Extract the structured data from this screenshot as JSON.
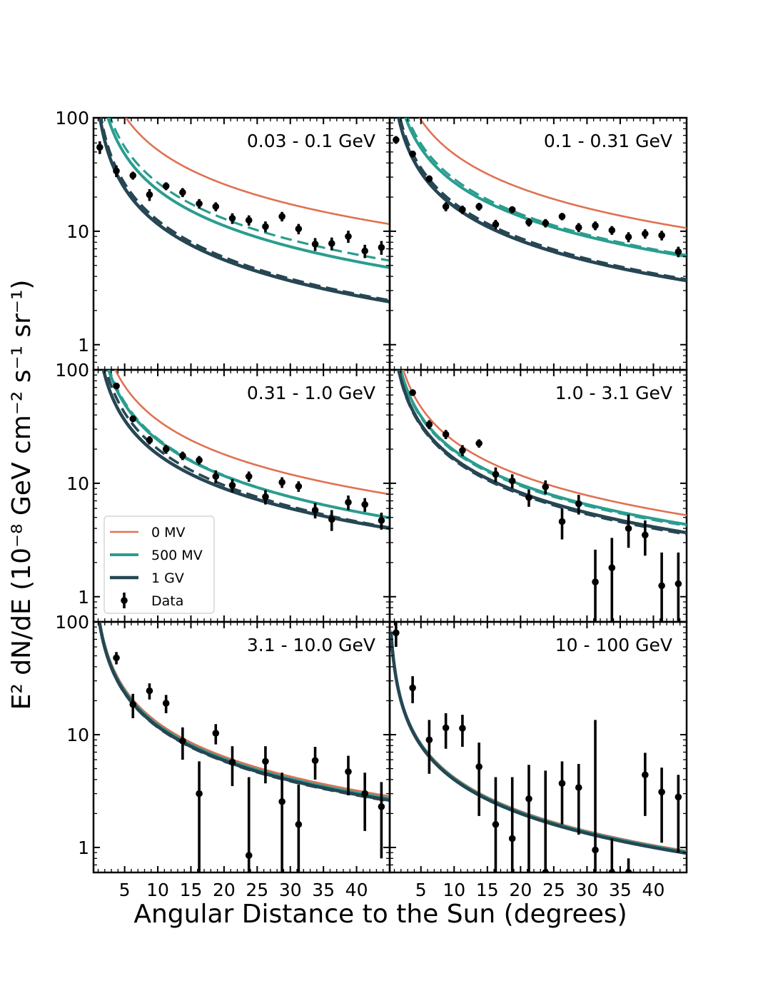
{
  "colors": {
    "zero_mv": "#e07152",
    "five_hundred_mv": "#2a9d8f",
    "one_gv": "#264653",
    "data": "#000000"
  },
  "chart_data": {
    "type": "line",
    "layout": "3x2 grid, shared axes",
    "xlabel": "Angular Distance to the Sun (degrees)",
    "ylabel": "E² dN/dE (10⁻⁸ GeV cm⁻² s⁻¹ sr⁻¹)",
    "xlim": [
      0.3,
      45
    ],
    "ylim": [
      0.6,
      100
    ],
    "yscale": "log",
    "x_ticks": [
      5,
      10,
      15,
      20,
      25,
      30,
      35,
      40
    ],
    "x_tick_labels": [
      "5",
      "10",
      "15",
      "20",
      "25",
      "30",
      "35",
      "40"
    ],
    "y_ticks": [
      1,
      10,
      100
    ],
    "y_tick_labels": [
      "1",
      "10",
      "100"
    ],
    "legend": {
      "placement": "lower-left of the middle-left panel",
      "entries": [
        {
          "label": "0 MV",
          "style": "line",
          "color_key": "zero_mv"
        },
        {
          "label": "500 MV",
          "style": "line",
          "color_key": "five_hundred_mv"
        },
        {
          "label": "1 GV",
          "style": "line",
          "color_key": "one_gv"
        },
        {
          "label": "Data",
          "style": "errorbar",
          "color_key": "data"
        }
      ]
    },
    "panels": [
      {
        "label": "0.03 - 0.1 GeV",
        "models": [
          {
            "name": "0 MV",
            "style": "solid",
            "A": 520,
            "alpha": 1.0
          },
          {
            "name": "500 MV",
            "style": "solid",
            "A": 260,
            "alpha": 1.05
          },
          {
            "name": "500 MV (dashed)",
            "style": "dashed",
            "A": 300,
            "alpha": 1.05
          },
          {
            "name": "1 GV",
            "style": "solid",
            "A": 130,
            "alpha": 1.05
          },
          {
            "name": "1 GV (dashed)",
            "style": "dashed",
            "A": 150,
            "alpha": 1.08
          }
        ],
        "data": [
          {
            "x": 1.25,
            "y": 55,
            "lo": 48,
            "hi": 62
          },
          {
            "x": 3.75,
            "y": 34,
            "lo": 30,
            "hi": 38
          },
          {
            "x": 6.25,
            "y": 31,
            "lo": 28.5,
            "hi": 33.5
          },
          {
            "x": 8.75,
            "y": 21,
            "lo": 18.5,
            "hi": 23.5
          },
          {
            "x": 11.25,
            "y": 25,
            "lo": 23,
            "hi": 27
          },
          {
            "x": 13.75,
            "y": 22,
            "lo": 20,
            "hi": 24
          },
          {
            "x": 16.25,
            "y": 17.5,
            "lo": 15.8,
            "hi": 19.2
          },
          {
            "x": 18.75,
            "y": 16.5,
            "lo": 15,
            "hi": 18
          },
          {
            "x": 21.25,
            "y": 13,
            "lo": 11.6,
            "hi": 14.4
          },
          {
            "x": 23.75,
            "y": 12.5,
            "lo": 11.2,
            "hi": 13.8
          },
          {
            "x": 26.25,
            "y": 11,
            "lo": 9.8,
            "hi": 12.2
          },
          {
            "x": 28.75,
            "y": 13.5,
            "lo": 12.2,
            "hi": 14.8
          },
          {
            "x": 31.25,
            "y": 10.5,
            "lo": 9.4,
            "hi": 11.6
          },
          {
            "x": 33.75,
            "y": 7.7,
            "lo": 6.7,
            "hi": 8.7
          },
          {
            "x": 36.25,
            "y": 7.8,
            "lo": 6.8,
            "hi": 8.8
          },
          {
            "x": 38.75,
            "y": 9.0,
            "lo": 7.9,
            "hi": 10.1
          },
          {
            "x": 41.25,
            "y": 6.7,
            "lo": 5.8,
            "hi": 7.6
          },
          {
            "x": 43.75,
            "y": 7.2,
            "lo": 6.2,
            "hi": 8.2
          }
        ]
      },
      {
        "label": "0.1 - 0.31 GeV",
        "models": [
          {
            "name": "0 MV",
            "style": "solid",
            "A": 480,
            "alpha": 1.0
          },
          {
            "name": "500 MV",
            "style": "solid",
            "A": 270,
            "alpha": 1.0
          },
          {
            "name": "500 MV (dashed)",
            "style": "dashed",
            "A": 310,
            "alpha": 1.03
          },
          {
            "name": "1 GV",
            "style": "solid",
            "A": 165,
            "alpha": 1.0
          },
          {
            "name": "1 GV (dashed)",
            "style": "dashed",
            "A": 190,
            "alpha": 1.03
          }
        ],
        "data": [
          {
            "x": 1.25,
            "y": 64,
            "lo": 59,
            "hi": 69
          },
          {
            "x": 3.75,
            "y": 48,
            "lo": 45,
            "hi": 51
          },
          {
            "x": 6.25,
            "y": 29,
            "lo": 27,
            "hi": 31
          },
          {
            "x": 8.75,
            "y": 16.5,
            "lo": 15,
            "hi": 18
          },
          {
            "x": 11.25,
            "y": 15.5,
            "lo": 14.2,
            "hi": 16.8
          },
          {
            "x": 13.75,
            "y": 16.5,
            "lo": 15.2,
            "hi": 17.8
          },
          {
            "x": 16.25,
            "y": 11.5,
            "lo": 10.4,
            "hi": 12.6
          },
          {
            "x": 18.75,
            "y": 15.5,
            "lo": 14.4,
            "hi": 16.6
          },
          {
            "x": 21.25,
            "y": 12.0,
            "lo": 11,
            "hi": 13
          },
          {
            "x": 23.75,
            "y": 11.8,
            "lo": 10.8,
            "hi": 12.8
          },
          {
            "x": 26.25,
            "y": 13.5,
            "lo": 12.5,
            "hi": 14.5
          },
          {
            "x": 28.75,
            "y": 10.8,
            "lo": 9.8,
            "hi": 11.8
          },
          {
            "x": 31.25,
            "y": 11.2,
            "lo": 10.2,
            "hi": 12.2
          },
          {
            "x": 33.75,
            "y": 10.2,
            "lo": 9.3,
            "hi": 11.1
          },
          {
            "x": 36.25,
            "y": 8.9,
            "lo": 8.0,
            "hi": 9.8
          },
          {
            "x": 38.75,
            "y": 9.5,
            "lo": 8.6,
            "hi": 10.4
          },
          {
            "x": 41.25,
            "y": 9.2,
            "lo": 8.3,
            "hi": 10.1
          },
          {
            "x": 43.75,
            "y": 6.6,
            "lo": 5.9,
            "hi": 7.3
          }
        ]
      },
      {
        "label": "0.31 - 1.0 GeV",
        "models": [
          {
            "name": "0 MV",
            "style": "solid",
            "A": 360,
            "alpha": 1.0
          },
          {
            "name": "500 MV",
            "style": "solid",
            "A": 270,
            "alpha": 1.05
          },
          {
            "name": "500 MV (dashed)",
            "style": "dashed",
            "A": 290,
            "alpha": 1.07
          },
          {
            "name": "1 GV",
            "style": "solid",
            "A": 180,
            "alpha": 1.0
          },
          {
            "name": "1 GV (dashed)",
            "style": "dashed",
            "A": 230,
            "alpha": 1.06
          }
        ],
        "data": [
          {
            "x": 3.75,
            "y": 72,
            "lo": 68,
            "hi": 76
          },
          {
            "x": 6.25,
            "y": 37,
            "lo": 35,
            "hi": 39
          },
          {
            "x": 8.75,
            "y": 24,
            "lo": 22,
            "hi": 26
          },
          {
            "x": 11.25,
            "y": 20,
            "lo": 18.2,
            "hi": 21.8
          },
          {
            "x": 13.75,
            "y": 17.5,
            "lo": 16,
            "hi": 19
          },
          {
            "x": 16.25,
            "y": 16,
            "lo": 14.6,
            "hi": 17.4
          },
          {
            "x": 18.75,
            "y": 11.5,
            "lo": 10,
            "hi": 13
          },
          {
            "x": 21.25,
            "y": 9.6,
            "lo": 8.3,
            "hi": 10.9
          },
          {
            "x": 23.75,
            "y": 11.5,
            "lo": 10.3,
            "hi": 12.7
          },
          {
            "x": 26.25,
            "y": 7.6,
            "lo": 6.5,
            "hi": 8.7
          },
          {
            "x": 28.75,
            "y": 10.2,
            "lo": 9.1,
            "hi": 11.3
          },
          {
            "x": 31.25,
            "y": 9.4,
            "lo": 8.4,
            "hi": 10.4
          },
          {
            "x": 33.75,
            "y": 5.8,
            "lo": 4.9,
            "hi": 6.7
          },
          {
            "x": 36.25,
            "y": 4.8,
            "lo": 3.8,
            "hi": 5.8
          },
          {
            "x": 38.75,
            "y": 6.8,
            "lo": 5.8,
            "hi": 7.8
          },
          {
            "x": 41.25,
            "y": 6.5,
            "lo": 5.6,
            "hi": 7.4
          },
          {
            "x": 43.75,
            "y": 4.7,
            "lo": 3.9,
            "hi": 5.5
          }
        ]
      },
      {
        "label": "1.0 - 3.1 GeV",
        "models": [
          {
            "name": "0 MV",
            "style": "solid",
            "A": 235,
            "alpha": 1.0
          },
          {
            "name": "500 MV",
            "style": "solid",
            "A": 195,
            "alpha": 1.0
          },
          {
            "name": "500 MV (dashed)",
            "style": "dashed",
            "A": 190,
            "alpha": 1.0
          },
          {
            "name": "1 GV",
            "style": "solid",
            "A": 165,
            "alpha": 1.0
          },
          {
            "name": "1 GV (dashed)",
            "style": "dashed",
            "A": 160,
            "alpha": 1.0
          }
        ],
        "data": [
          {
            "x": 3.75,
            "y": 63,
            "lo": 60,
            "hi": 66
          },
          {
            "x": 6.25,
            "y": 33,
            "lo": 30,
            "hi": 36
          },
          {
            "x": 8.75,
            "y": 27,
            "lo": 24.5,
            "hi": 29.5
          },
          {
            "x": 11.25,
            "y": 19.5,
            "lo": 17.3,
            "hi": 21.7
          },
          {
            "x": 13.75,
            "y": 22.5,
            "lo": 20.6,
            "hi": 24.4
          },
          {
            "x": 16.25,
            "y": 12,
            "lo": 10.2,
            "hi": 13.8
          },
          {
            "x": 18.75,
            "y": 10.5,
            "lo": 9.0,
            "hi": 12.0
          },
          {
            "x": 21.25,
            "y": 7.5,
            "lo": 6.2,
            "hi": 8.8
          },
          {
            "x": 23.75,
            "y": 9.3,
            "lo": 8.0,
            "hi": 10.6
          },
          {
            "x": 26.25,
            "y": 4.6,
            "lo": 3.2,
            "hi": 6.0
          },
          {
            "x": 28.75,
            "y": 6.6,
            "lo": 5.3,
            "hi": 7.9
          },
          {
            "x": 31.25,
            "y": 1.35,
            "lo": 0.6,
            "hi": 2.6
          },
          {
            "x": 33.75,
            "y": 1.8,
            "lo": 0.6,
            "hi": 3.3
          },
          {
            "x": 36.25,
            "y": 4.0,
            "lo": 2.7,
            "hi": 5.3
          },
          {
            "x": 38.75,
            "y": 3.5,
            "lo": 2.3,
            "hi": 4.7
          },
          {
            "x": 41.25,
            "y": 1.25,
            "lo": 0.6,
            "hi": 2.45
          },
          {
            "x": 43.75,
            "y": 1.3,
            "lo": 0.6,
            "hi": 2.45
          }
        ]
      },
      {
        "label": "3.1 - 10.0 GeV",
        "models": [
          {
            "name": "0 MV",
            "style": "solid",
            "A": 128,
            "alpha": 1.0
          },
          {
            "name": "500 MV",
            "style": "solid",
            "A": 122,
            "alpha": 1.0
          },
          {
            "name": "500 MV (dashed)",
            "style": "dashed",
            "A": 120,
            "alpha": 1.0
          },
          {
            "name": "1 GV",
            "style": "solid",
            "A": 118,
            "alpha": 1.0
          },
          {
            "name": "1 GV (dashed)",
            "style": "dashed",
            "A": 116,
            "alpha": 1.0
          }
        ],
        "data": [
          {
            "x": 3.75,
            "y": 48,
            "lo": 42,
            "hi": 54
          },
          {
            "x": 6.25,
            "y": 18.5,
            "lo": 14,
            "hi": 23
          },
          {
            "x": 8.75,
            "y": 24.5,
            "lo": 20.5,
            "hi": 28.5
          },
          {
            "x": 11.25,
            "y": 19,
            "lo": 15.5,
            "hi": 22.5
          },
          {
            "x": 13.75,
            "y": 8.8,
            "lo": 6.0,
            "hi": 11.6
          },
          {
            "x": 16.25,
            "y": 3.0,
            "lo": 0.6,
            "hi": 5.8
          },
          {
            "x": 18.75,
            "y": 10.3,
            "lo": 8.2,
            "hi": 12.4
          },
          {
            "x": 21.25,
            "y": 5.7,
            "lo": 3.5,
            "hi": 7.9
          },
          {
            "x": 23.75,
            "y": 0.85,
            "lo": 0.6,
            "hi": 4.2
          },
          {
            "x": 26.25,
            "y": 5.8,
            "lo": 3.7,
            "hi": 7.9
          },
          {
            "x": 28.75,
            "y": 2.55,
            "lo": 0.6,
            "hi": 4.6
          },
          {
            "x": 31.25,
            "y": 1.6,
            "lo": 0.6,
            "hi": 3.6
          },
          {
            "x": 33.75,
            "y": 5.9,
            "lo": 4.0,
            "hi": 7.8
          },
          {
            "x": 38.75,
            "y": 4.7,
            "lo": 2.9,
            "hi": 6.5
          },
          {
            "x": 41.25,
            "y": 3.0,
            "lo": 1.4,
            "hi": 4.6
          },
          {
            "x": 43.75,
            "y": 2.3,
            "lo": 0.8,
            "hi": 3.8
          }
        ]
      },
      {
        "label": "10 - 100 GeV",
        "models": [
          {
            "name": "0 MV",
            "style": "solid",
            "A": 42,
            "alpha": 1.0
          },
          {
            "name": "500 MV",
            "style": "solid",
            "A": 41,
            "alpha": 1.0
          },
          {
            "name": "500 MV (dashed)",
            "style": "dashed",
            "A": 40.5,
            "alpha": 1.0
          },
          {
            "name": "1 GV",
            "style": "solid",
            "A": 40,
            "alpha": 1.0
          },
          {
            "name": "1 GV (dashed)",
            "style": "dashed",
            "A": 40,
            "alpha": 1.0
          }
        ],
        "data": [
          {
            "x": 1.25,
            "y": 80,
            "lo": 60,
            "hi": 100
          },
          {
            "x": 3.75,
            "y": 26,
            "lo": 19,
            "hi": 33
          },
          {
            "x": 6.25,
            "y": 9.0,
            "lo": 4.5,
            "hi": 13.5
          },
          {
            "x": 8.75,
            "y": 11.5,
            "lo": 7.5,
            "hi": 15.5
          },
          {
            "x": 11.25,
            "y": 11.4,
            "lo": 7.8,
            "hi": 15.0
          },
          {
            "x": 13.75,
            "y": 5.2,
            "lo": 1.9,
            "hi": 8.5
          },
          {
            "x": 16.25,
            "y": 1.6,
            "lo": 0.6,
            "hi": 4.2
          },
          {
            "x": 18.75,
            "y": 1.2,
            "lo": 0.6,
            "hi": 4.2
          },
          {
            "x": 21.25,
            "y": 2.7,
            "lo": 0.6,
            "hi": 5.4
          },
          {
            "x": 23.75,
            "y": 0.6,
            "lo": 0.6,
            "hi": 4.8
          },
          {
            "x": 26.25,
            "y": 3.7,
            "lo": 1.6,
            "hi": 5.8
          },
          {
            "x": 28.75,
            "y": 3.4,
            "lo": 1.3,
            "hi": 5.5
          },
          {
            "x": 31.25,
            "y": 0.95,
            "lo": 0.6,
            "hi": 13.5
          },
          {
            "x": 33.75,
            "y": 0.6,
            "lo": 0.6,
            "hi": 1.2
          },
          {
            "x": 36.25,
            "y": 0.6,
            "lo": 0.6,
            "hi": 0.8
          },
          {
            "x": 38.75,
            "y": 4.4,
            "lo": 1.9,
            "hi": 6.9
          },
          {
            "x": 41.25,
            "y": 3.1,
            "lo": 1.1,
            "hi": 5.1
          },
          {
            "x": 43.75,
            "y": 2.8,
            "lo": 0.9,
            "hi": 4.4
          }
        ]
      }
    ]
  }
}
